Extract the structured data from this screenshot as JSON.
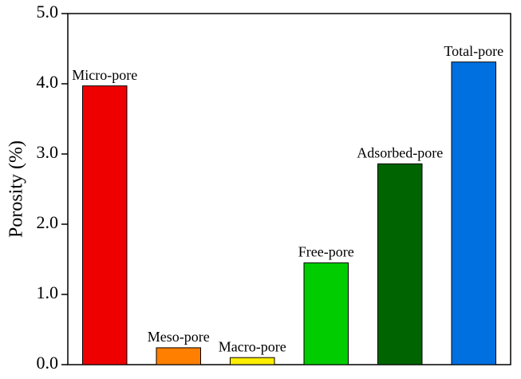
{
  "chart_data": {
    "type": "bar",
    "y_label": "Porosity (%)",
    "categories": [
      "Micro-pore",
      "Meso-pore",
      "Macro-pore",
      "Free-pore",
      "Adsorbed-pore",
      "Total-pore"
    ],
    "values": [
      3.97,
      0.24,
      0.1,
      1.45,
      2.86,
      4.31
    ],
    "colors": [
      "#ee0000",
      "#ff7f00",
      "#ffee00",
      "#00cc00",
      "#006400",
      "#0070e0"
    ],
    "ylim": [
      0,
      5
    ],
    "yticks": [
      {
        "value": 0,
        "label": "0.0"
      },
      {
        "value": 1,
        "label": "1.0"
      },
      {
        "value": 2,
        "label": "2.0"
      },
      {
        "value": 3,
        "label": "3.0"
      },
      {
        "value": 4,
        "label": "4.0"
      },
      {
        "value": 5,
        "label": "5.0"
      }
    ]
  }
}
